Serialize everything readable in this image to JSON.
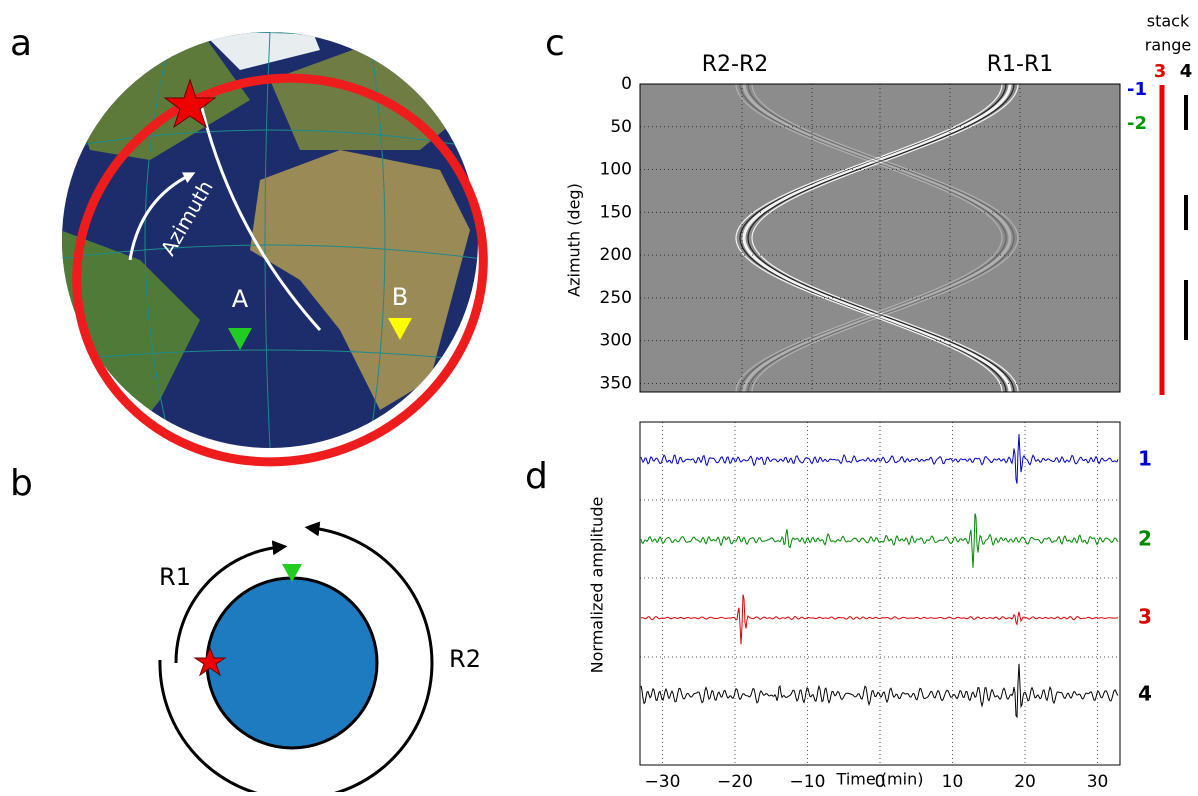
{
  "panels": {
    "a": "a",
    "b": "b",
    "c": "c",
    "d": "d"
  },
  "globe": {
    "labels": {
      "azimuth": "Azimuth",
      "station_a": "A",
      "station_b": "B"
    }
  },
  "diagram": {
    "labels": {
      "r1": "R1",
      "r2": "R2"
    }
  },
  "chart_data": [
    {
      "type": "heatmap",
      "phase_labels": [
        "R2-R2",
        "R1-R1"
      ],
      "y_label": "Azimuth (deg)",
      "ylim": [
        0,
        360
      ],
      "yticks": [
        0,
        50,
        100,
        150,
        200,
        250,
        300,
        350
      ],
      "stack_title": [
        "stack",
        "range"
      ],
      "stack_markers": [
        {
          "label": "-1",
          "color": "#0000dd"
        },
        {
          "label": "-2",
          "color": "#009900"
        },
        {
          "label": "3",
          "color": "#ee0000"
        },
        {
          "label": "4",
          "color": "#000000"
        }
      ]
    },
    {
      "type": "line",
      "x_label": "Time (min)",
      "y_label": "Normalized amplitude",
      "xlim": [
        -33.1,
        33.1
      ],
      "xticks": [
        {
          "value": -30,
          "label": "−30"
        },
        {
          "value": -20,
          "label": "−20"
        },
        {
          "value": -10,
          "label": "−10"
        },
        0,
        10,
        20,
        30
      ],
      "series": [
        {
          "name": "1",
          "color": "#0000cc",
          "x": [
            19
          ]
        },
        {
          "name": "2",
          "color": "#008800",
          "x": [
            13,
            -13
          ]
        },
        {
          "name": "3",
          "color": "#dd0000",
          "x": [
            -19,
            19
          ]
        },
        {
          "name": "4",
          "color": "#000000",
          "x": [
            19,
            -14
          ]
        }
      ]
    }
  ]
}
